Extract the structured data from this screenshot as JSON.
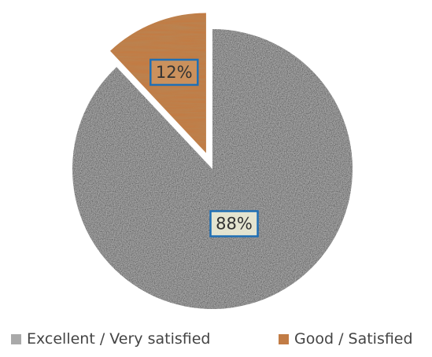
{
  "chart_data": {
    "type": "pie",
    "categories": [
      "Excellent / Very satisfied",
      "Good / Satisfied"
    ],
    "values": [
      88,
      12
    ],
    "data_labels": [
      "88%",
      "12%"
    ],
    "colors": [
      "#a9a9a9",
      "#c27c45"
    ],
    "label_box_color": "#1f6fb5",
    "exploded_slice": "Good / Satisfied",
    "legend_placement": "bottom",
    "title": ""
  },
  "legend": {
    "items": [
      {
        "label": "Excellent / Very satisfied",
        "color": "#a9a9a9"
      },
      {
        "label": "Good / Satisfied",
        "color": "#c27c45"
      }
    ]
  }
}
